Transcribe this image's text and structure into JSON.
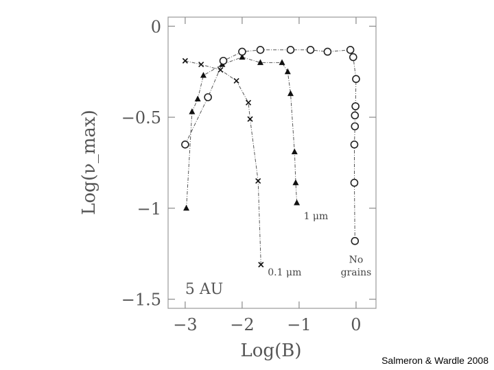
{
  "chart_data": {
    "type": "line",
    "xlabel": "Log(B)",
    "ylabel": "Log(ν_max)",
    "xlim": [
      -3.3,
      0.35
    ],
    "ylim": [
      -1.55,
      0.05
    ],
    "xticks": [
      {
        "v": -3,
        "label": "−3"
      },
      {
        "v": -2,
        "label": "−2"
      },
      {
        "v": -1,
        "label": "−1"
      },
      {
        "v": 0,
        "label": "0"
      }
    ],
    "yticks": [
      {
        "v": 0,
        "label": "0"
      },
      {
        "v": -0.5,
        "label": "−0.5"
      },
      {
        "v": -1,
        "label": "−1"
      },
      {
        "v": -1.5,
        "label": "−1.5"
      }
    ],
    "grid": false,
    "series": [
      {
        "name": "0.1 μm",
        "marker": "cross",
        "points": [
          [
            -3.0,
            -0.19
          ],
          [
            -2.72,
            -0.21
          ],
          [
            -2.38,
            -0.24
          ],
          [
            -2.1,
            -0.3
          ],
          [
            -1.89,
            -0.42
          ],
          [
            -1.86,
            -0.51
          ],
          [
            -1.72,
            -0.85
          ],
          [
            -1.67,
            -1.31
          ]
        ]
      },
      {
        "name": "1 μm",
        "marker": "triangle",
        "points": [
          [
            -2.98,
            -1.0
          ],
          [
            -2.88,
            -0.47
          ],
          [
            -2.78,
            -0.4
          ],
          [
            -2.68,
            -0.27
          ],
          [
            -2.35,
            -0.21
          ],
          [
            -2.0,
            -0.17
          ],
          [
            -1.68,
            -0.2
          ],
          [
            -1.3,
            -0.2
          ],
          [
            -1.2,
            -0.25
          ],
          [
            -1.15,
            -0.37
          ],
          [
            -1.08,
            -0.69
          ],
          [
            -1.06,
            -0.86
          ],
          [
            -1.04,
            -0.97
          ]
        ]
      },
      {
        "name": "No grains",
        "marker": "circle",
        "points": [
          [
            -3.0,
            -0.65
          ],
          [
            -2.6,
            -0.39
          ],
          [
            -2.33,
            -0.19
          ],
          [
            -2.0,
            -0.14
          ],
          [
            -1.68,
            -0.13
          ],
          [
            -1.15,
            -0.13
          ],
          [
            -0.8,
            -0.13
          ],
          [
            -0.5,
            -0.14
          ],
          [
            -0.1,
            -0.13
          ],
          [
            -0.05,
            -0.17
          ],
          [
            0.0,
            -0.29
          ],
          [
            -0.01,
            -0.44
          ],
          [
            -0.02,
            -0.49
          ],
          [
            -0.02,
            -0.55
          ],
          [
            -0.03,
            -0.65
          ],
          [
            -0.03,
            -0.86
          ],
          [
            -0.02,
            -1.18
          ]
        ]
      }
    ],
    "annotations": [
      {
        "text": "5 AU",
        "x": -3.0,
        "y": -1.47
      },
      {
        "text": "1 μm",
        "x": -0.92,
        "y": -1.06
      },
      {
        "text": "0.1 μm",
        "x": -1.55,
        "y": -1.37
      },
      {
        "text": "No",
        "x": 0.0,
        "y": -1.3
      },
      {
        "text": "grains",
        "x": 0.0,
        "y": -1.37
      }
    ]
  },
  "credit": "Salmeron & Wardle 2008"
}
